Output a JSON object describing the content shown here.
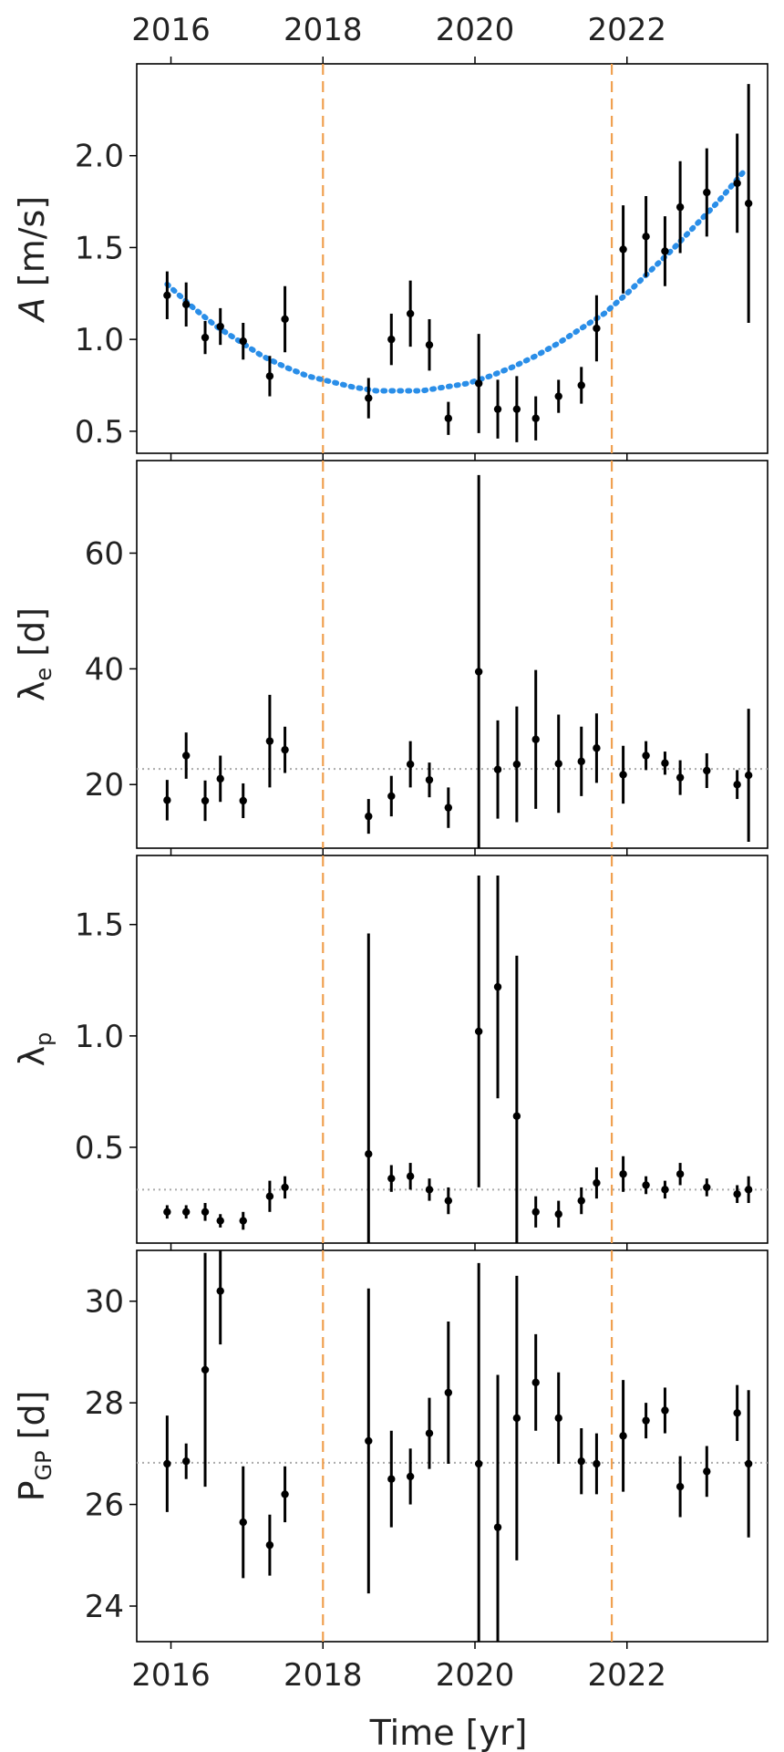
{
  "chart_data": {
    "type": "scatter",
    "layout": "4 stacked panels sharing a time axis",
    "xlabel": "Time [yr]",
    "xlim": [
      2015.55,
      2023.85
    ],
    "x_ticks": [
      2016,
      2018,
      2020,
      2022
    ],
    "x_tick_labels": [
      "2016",
      "2018",
      "2020",
      "2022"
    ],
    "x_ticks_top": true,
    "grid": false,
    "vlines": {
      "x": [
        2018.0,
        2021.8
      ],
      "color": "#f0a050",
      "style": "dashed"
    },
    "point_color": "#000000",
    "reference_line_color": "#aaaaaa",
    "fit_color": "#2a8ee8",
    "x": [
      2015.95,
      2016.2,
      2016.45,
      2016.65,
      2016.95,
      2017.3,
      2017.5,
      2018.6,
      2018.9,
      2019.15,
      2019.4,
      2019.65,
      2020.05,
      2020.3,
      2020.55,
      2020.8,
      2021.1,
      2021.4,
      2021.6,
      2021.95,
      2022.25,
      2022.5,
      2022.7,
      2023.05,
      2023.45,
      2023.6
    ],
    "panels": [
      {
        "ylabel_main": "A",
        "ylabel_sub": "",
        "ylabel_rest": " [m/s]",
        "ylim": [
          0.38,
          2.5
        ],
        "y_ticks": [
          0.5,
          1.0,
          1.5,
          2.0
        ],
        "y_tick_labels": [
          "0.5",
          "1.0",
          "1.5",
          "2.0"
        ],
        "y": [
          1.24,
          1.19,
          1.01,
          1.07,
          0.99,
          0.8,
          1.11,
          0.68,
          1.0,
          1.14,
          0.97,
          0.57,
          0.76,
          0.62,
          0.62,
          0.57,
          0.69,
          0.75,
          1.06,
          1.49,
          1.56,
          1.48,
          1.72,
          1.8,
          1.85,
          1.74
        ],
        "yerr": [
          0.13,
          0.12,
          0.09,
          0.1,
          0.1,
          0.11,
          0.18,
          0.11,
          0.14,
          0.18,
          0.14,
          0.09,
          0.27,
          0.16,
          0.18,
          0.12,
          0.09,
          0.1,
          0.18,
          0.24,
          0.22,
          0.19,
          0.25,
          0.24,
          0.27,
          0.65
        ],
        "fit": {
          "style": "dotted",
          "x": [
            2015.95,
            2016.3,
            2016.6,
            2016.9,
            2017.2,
            2017.5,
            2017.8,
            2018.1,
            2018.4,
            2018.7,
            2019.0,
            2019.3,
            2019.6,
            2019.9,
            2020.2,
            2020.5,
            2020.8,
            2021.1,
            2021.4,
            2021.7,
            2022.0,
            2022.3,
            2022.6,
            2022.9,
            2023.2,
            2023.55
          ],
          "y": [
            1.3,
            1.17,
            1.07,
            0.99,
            0.91,
            0.85,
            0.8,
            0.77,
            0.74,
            0.72,
            0.72,
            0.72,
            0.74,
            0.76,
            0.8,
            0.85,
            0.91,
            0.98,
            1.06,
            1.14,
            1.25,
            1.37,
            1.49,
            1.62,
            1.75,
            1.92
          ]
        }
      },
      {
        "ylabel_main": "λ",
        "ylabel_sub": "e",
        "ylabel_rest": " [d]",
        "ylim": [
          9,
          76
        ],
        "y_ticks": [
          20,
          40,
          60
        ],
        "y_tick_labels": [
          "20",
          "40",
          "60"
        ],
        "y": [
          17.3,
          25.0,
          17.2,
          21.0,
          17.2,
          27.5,
          26.0,
          14.5,
          18.0,
          23.5,
          20.8,
          16.0,
          39.5,
          22.6,
          23.5,
          27.8,
          23.6,
          24.0,
          26.3,
          21.7,
          25.0,
          23.7,
          21.2,
          22.4,
          20.0,
          21.6
        ],
        "yerr": [
          3.5,
          4.0,
          3.5,
          4.0,
          3.0,
          8.0,
          4.0,
          3.0,
          3.5,
          4.0,
          3.0,
          3.5,
          34.0,
          8.5,
          10.0,
          12.0,
          8.5,
          6.0,
          6.0,
          5.0,
          2.5,
          2.0,
          3.0,
          3.0,
          2.5,
          11.5
        ],
        "reference_line": {
          "y": 22.7,
          "style": "dotted"
        }
      },
      {
        "ylabel_main": "λ",
        "ylabel_sub": "p",
        "ylabel_rest": "",
        "ylim": [
          0.07,
          1.81
        ],
        "y_ticks": [
          0.5,
          1.0,
          1.5
        ],
        "y_tick_labels": [
          "0.5",
          "1.0",
          "1.5"
        ],
        "y": [
          0.21,
          0.21,
          0.21,
          0.17,
          0.17,
          0.28,
          0.32,
          0.47,
          0.36,
          0.37,
          0.31,
          0.26,
          1.02,
          1.22,
          0.64,
          0.21,
          0.2,
          0.26,
          0.34,
          0.38,
          0.33,
          0.31,
          0.38,
          0.32,
          0.29,
          0.31
        ],
        "yerr": [
          0.03,
          0.03,
          0.04,
          0.03,
          0.04,
          0.07,
          0.05,
          0.99,
          0.06,
          0.06,
          0.05,
          0.06,
          0.7,
          0.5,
          0.72,
          0.07,
          0.06,
          0.06,
          0.07,
          0.08,
          0.04,
          0.04,
          0.05,
          0.04,
          0.04,
          0.06
        ],
        "reference_line": {
          "y": 0.31,
          "style": "dotted"
        }
      },
      {
        "ylabel_main": "P",
        "ylabel_sub": "GP",
        "ylabel_rest": " [d]",
        "ylim": [
          23.3,
          31.0
        ],
        "y_ticks": [
          24,
          26,
          28,
          30
        ],
        "y_tick_labels": [
          "24",
          "26",
          "28",
          "30"
        ],
        "y": [
          26.8,
          26.85,
          28.65,
          30.2,
          25.65,
          25.2,
          26.2,
          27.25,
          26.5,
          26.55,
          27.4,
          28.2,
          26.8,
          25.55,
          27.7,
          28.4,
          27.7,
          26.85,
          26.8,
          27.35,
          27.65,
          27.85,
          26.35,
          26.65,
          27.8,
          26.8
        ],
        "yerr": [
          0.95,
          0.35,
          2.3,
          1.05,
          1.1,
          0.6,
          0.55,
          3.0,
          0.95,
          0.55,
          0.7,
          1.4,
          3.95,
          3.0,
          2.8,
          0.95,
          0.9,
          0.65,
          0.6,
          1.1,
          0.35,
          0.45,
          0.6,
          0.5,
          0.55,
          1.45
        ],
        "reference_line": {
          "y": 26.82,
          "style": "dotted"
        }
      }
    ]
  }
}
